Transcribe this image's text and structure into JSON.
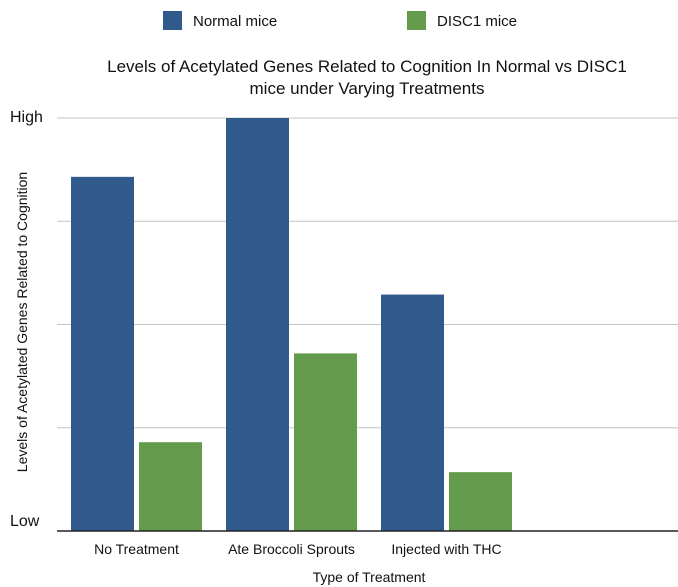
{
  "chart_data": {
    "type": "bar",
    "title_lines": [
      "Levels of Acetylated Genes Related to Cognition In Normal vs DISC1",
      "mice under Varying Treatments"
    ],
    "xlabel": "Type of Treatment",
    "ylabel": "Levels of Acetylated Genes Related to Cognition",
    "y_tick_labels": {
      "top": "High",
      "bottom": "Low"
    },
    "ylim": [
      0,
      4
    ],
    "grid": true,
    "legend_position": "top",
    "categories": [
      "No Treatment",
      "Ate Broccoli Sprouts",
      "Injected with THC"
    ],
    "series": [
      {
        "name": "Normal mice",
        "color": "#315a8c",
        "values": [
          3.43,
          4.0,
          2.29
        ]
      },
      {
        "name": "DISC1 mice",
        "color": "#639a4c",
        "values": [
          0.86,
          1.72,
          0.57
        ]
      }
    ]
  }
}
